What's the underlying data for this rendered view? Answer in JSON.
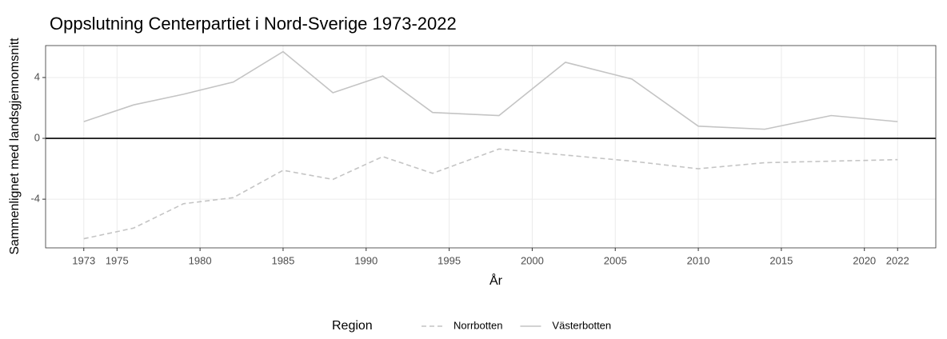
{
  "chart_data": {
    "type": "line",
    "title": "Oppslutning Centerpartiet i Nord-Sverige 1973-2022",
    "x_label": "År",
    "y_label": "Sammenlignet med landsgjennomsnitt",
    "legend_title": "Region",
    "legend_position": "bottom",
    "x": [
      1973,
      1976,
      1979,
      1982,
      1985,
      1988,
      1991,
      1994,
      1998,
      2002,
      2006,
      2010,
      2014,
      2018,
      2022
    ],
    "series": [
      {
        "name": "Norrbotten",
        "color": "#c4c4c4",
        "linestyle": "dashed",
        "values": [
          -6.6,
          -5.9,
          -4.3,
          -3.9,
          -2.1,
          -2.7,
          -1.2,
          -2.3,
          -0.7,
          -1.1,
          -1.5,
          -2.0,
          -1.6,
          -1.5,
          -1.4
        ]
      },
      {
        "name": "Västerbotten",
        "color": "#c4c4c4",
        "linestyle": "solid",
        "values": [
          1.1,
          2.2,
          2.9,
          3.7,
          5.7,
          3.0,
          4.1,
          1.7,
          1.5,
          5.0,
          3.9,
          0.8,
          0.6,
          1.5,
          1.1
        ]
      }
    ],
    "xlim": [
      1970.7,
      2024.3
    ],
    "xticks": [
      1973,
      1975,
      1980,
      1985,
      1990,
      1995,
      2000,
      2005,
      2010,
      2015,
      2020,
      2022
    ],
    "ylim": [
      -7.2,
      6.1
    ],
    "yticks": [
      -4,
      0,
      4
    ],
    "hline": 0,
    "grid": true
  }
}
